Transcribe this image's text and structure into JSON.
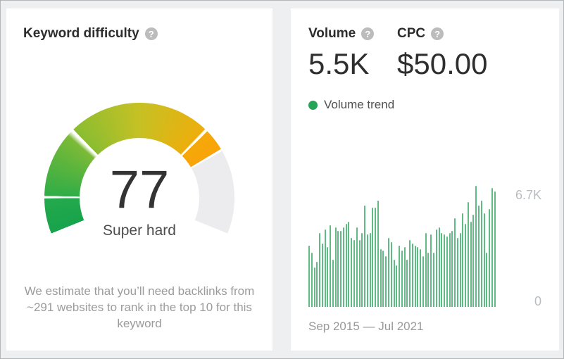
{
  "left_panel": {
    "title": "Keyword difficulty",
    "gauge": {
      "value": "77",
      "label": "Super hard",
      "max": 100,
      "segment_boundaries": [
        10,
        30,
        70
      ],
      "filled_to": 77
    },
    "footnote": "We estimate that you’ll need backlinks from ~291 websites to rank in the top 10 for this keyword"
  },
  "right_panel": {
    "metrics": [
      {
        "label": "Volume",
        "value": "5.5K"
      },
      {
        "label": "CPC",
        "value": "$50.00"
      }
    ],
    "legend": {
      "label": "Volume trend"
    },
    "date_range": "Sep 2015 — Jul 2021"
  },
  "icons": {
    "help_glyph": "?"
  },
  "chart_data": {
    "type": "bar",
    "title": "Volume trend",
    "x_start": "Sep 2015",
    "x_end": "Jul 2021",
    "x_granularity": "monthly",
    "unit": "K",
    "values": [
      3.4,
      3.0,
      2.2,
      2.5,
      4.1,
      3.5,
      4.3,
      3.3,
      4.5,
      2.6,
      4.4,
      4.2,
      4.2,
      4.4,
      4.6,
      4.7,
      3.8,
      3.7,
      4.4,
      3.7,
      4.1,
      5.6,
      4.0,
      4.1,
      5.5,
      5.5,
      5.9,
      3.2,
      3.1,
      2.8,
      3.8,
      3.6,
      2.6,
      2.3,
      3.4,
      3.1,
      3.3,
      2.6,
      3.7,
      3.5,
      3.4,
      3.3,
      3.2,
      2.8,
      4.1,
      3.0,
      4.0,
      3.0,
      4.3,
      4.4,
      4.1,
      4.0,
      3.9,
      4.1,
      4.2,
      4.9,
      3.8,
      4.1,
      5.2,
      4.6,
      5.8,
      4.7,
      5.1,
      6.7,
      5.6,
      5.9,
      5.2,
      3.0,
      5.4,
      6.6,
      6.4
    ],
    "ylim": [
      0,
      6.7
    ],
    "y_axis_labels": [
      "6.7K",
      "0"
    ],
    "grid": false,
    "legend_position": "top-left"
  },
  "colors": {
    "bar": "#5fba84",
    "legend_dot": "#27a357",
    "gauge_green": "#17a34c",
    "gauge_olive": "#c6c124",
    "gauge_orange": "#f9a30a",
    "gauge_rest_gray": "#ececee",
    "axis_label": "#b9bdc1",
    "page_background": "#edeff1"
  }
}
